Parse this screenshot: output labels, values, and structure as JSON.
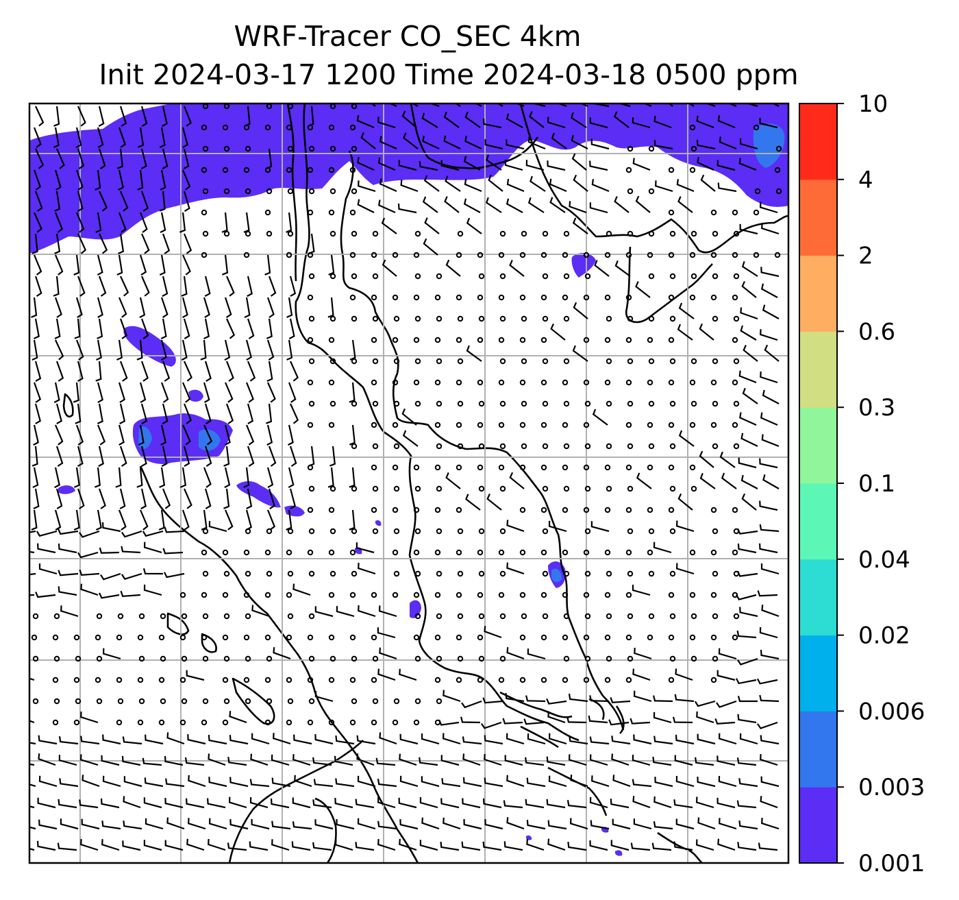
{
  "title": {
    "line1": "WRF-Tracer CO_SEC 4km",
    "line2": "Init 2024-03-17 1200 Time 2024-03-18 0500 ppm"
  },
  "colorbar": {
    "levels": [
      "0.001",
      "0.003",
      "0.006",
      "0.02",
      "0.04",
      "0.1",
      "0.3",
      "0.6",
      "2",
      "4",
      "10"
    ],
    "colors": [
      "#5b2df5",
      "#3277ee",
      "#00b0ec",
      "#2ddcd2",
      "#5cf7b7",
      "#90f59b",
      "#d2de82",
      "#ffad60",
      "#ff6b37",
      "#ff2a1a"
    ]
  },
  "map": {
    "field_color": "#5b2df5",
    "secondary_color": "#3277ee",
    "gridline_color": "#b0b0b0",
    "coastline_color": "#000000"
  }
}
